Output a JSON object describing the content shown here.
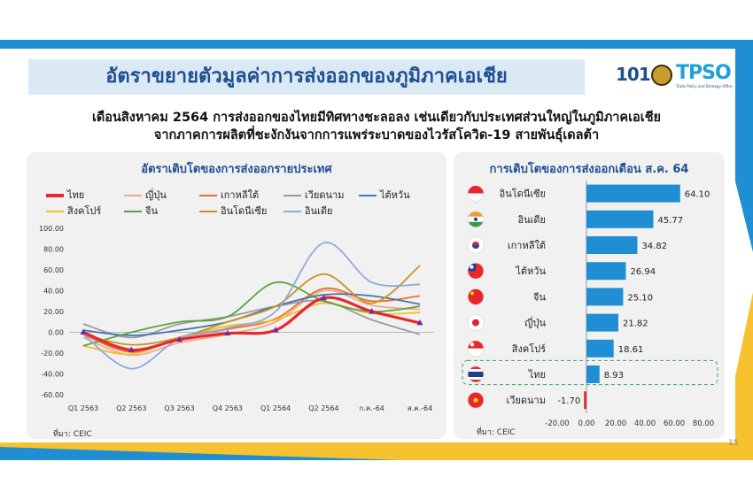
{
  "header": {
    "title": "อัตราขยายตัวมูลค่าการส่งออกของภูมิภาคเอเชีย",
    "subtitle_line1": "เดือนสิงหาคม 2564 การส่งออกของไทยมีทิศทางชะลอลง เช่นเดียวกับประเทศส่วนใหญ่ในภูมิภาคเอเชีย",
    "subtitle_line2": "จากภาคการผลิตที่ชะงักงันจากการแพร่ระบาดของไวรัสโควิด-19 สายพันธุ์เดลต้า"
  },
  "logos": {
    "logo1": "101",
    "logo3": "TPSO",
    "logo3_caption": "Trade Policy and Strategy Office"
  },
  "page_number": "15",
  "chart_data": [
    {
      "type": "line",
      "title": "อัตราเติบโตของการส่งออกรายประเทศ",
      "source": "ที่มา: CEIC",
      "x": [
        "Q1 2563",
        "Q2 2563",
        "Q3 2563",
        "Q4 2563",
        "Q1 2564",
        "Q2 2564",
        "ก.ค.-64",
        "ส.ค.-64"
      ],
      "ylim": [
        -60,
        100
      ],
      "yticks": [
        "100.00",
        "80.00",
        "60.00",
        "40.00",
        "20.00",
        "0.00",
        "-20.00",
        "-40.00",
        "-60.00"
      ],
      "legend_position": "top",
      "series": [
        {
          "name": "ไทย",
          "color": "#e8262d",
          "values": [
            0,
            -17,
            -7,
            -1,
            2,
            33,
            20,
            9
          ]
        },
        {
          "name": "ญี่ปุ่น",
          "color": "#f2a98a",
          "values": [
            -5,
            -22,
            -10,
            -2,
            10,
            40,
            26,
            22
          ]
        },
        {
          "name": "เกาหลีใต้",
          "color": "#e8702a",
          "values": [
            -2,
            -19,
            -5,
            3,
            13,
            42,
            30,
            35
          ]
        },
        {
          "name": "เวียดนาม",
          "color": "#9a9a9a",
          "values": [
            8,
            -5,
            8,
            15,
            25,
            30,
            12,
            -2
          ]
        },
        {
          "name": "ไต้หวัน",
          "color": "#4474b6",
          "values": [
            2,
            -3,
            2,
            10,
            25,
            36,
            35,
            27
          ]
        },
        {
          "name": "สิงคโปร์",
          "color": "#f2c022",
          "values": [
            -13,
            -21,
            -5,
            6,
            12,
            28,
            18,
            19
          ]
        },
        {
          "name": "จีน",
          "color": "#5aa440",
          "values": [
            -13,
            0,
            10,
            15,
            48,
            30,
            20,
            25
          ]
        },
        {
          "name": "อินโดนีเซีย",
          "color": "#c8941e",
          "values": [
            -2,
            -12,
            -5,
            10,
            25,
            56,
            28,
            64
          ]
        },
        {
          "name": "อินเดีย",
          "color": "#8eaadb",
          "values": [
            -2,
            -35,
            -6,
            4,
            20,
            86,
            48,
            46
          ]
        }
      ]
    },
    {
      "type": "bar",
      "orientation": "horizontal",
      "title": "การเติบโตของการส่งออกเดือน ส.ค. 64",
      "source": "ที่มา: CEIC",
      "xlim": [
        -20,
        80
      ],
      "xticks": [
        "-20.00",
        "0.00",
        "20.00",
        "40.00",
        "60.00",
        "80.00"
      ],
      "bar_color": "#1f8ed3",
      "highlight": "ไทย",
      "categories": [
        "อินโดนีเซีย",
        "อินเดีย",
        "เกาหลีใต้",
        "ไต้หวัน",
        "จีน",
        "ญี่ปุ่น",
        "สิงคโปร์",
        "ไทย",
        "เวียดนาม"
      ],
      "values": [
        64.1,
        45.77,
        34.82,
        26.94,
        25.1,
        21.82,
        18.61,
        8.93,
        -1.7
      ],
      "value_labels": [
        "64.10",
        "45.77",
        "34.82",
        "26.94",
        "25.10",
        "21.82",
        "18.61",
        "8.93",
        "-1.70"
      ],
      "flags": [
        "indonesia-flag",
        "india-flag",
        "south-korea-flag",
        "taiwan-flag",
        "china-flag",
        "japan-flag",
        "singapore-flag",
        "thailand-flag",
        "vietnam-flag"
      ]
    }
  ]
}
